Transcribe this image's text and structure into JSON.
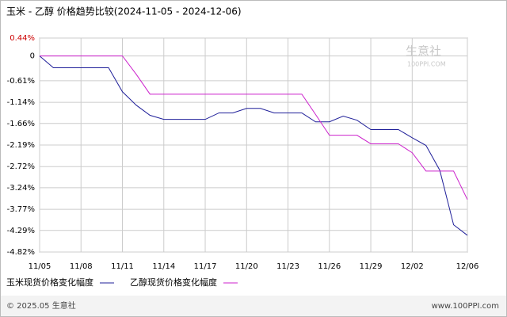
{
  "chart_data": {
    "type": "line",
    "title": "玉米 - 乙醇 价格趋势比较(2024-11-05 - 2024-12-06)",
    "categories": [
      "11/05",
      null,
      null,
      "11/08",
      null,
      null,
      "11/11",
      null,
      null,
      "11/14",
      null,
      null,
      "11/17",
      null,
      null,
      "11/20",
      null,
      null,
      "11/23",
      null,
      null,
      "11/26",
      null,
      null,
      "11/29",
      null,
      null,
      "12/02",
      null,
      null,
      null,
      "12/06"
    ],
    "series": [
      {
        "name": "玉米现货价格变化幅度",
        "color": "#1f1f99",
        "values": [
          0,
          -0.29,
          -0.29,
          -0.29,
          -0.29,
          -0.29,
          -0.88,
          -1.21,
          -1.46,
          -1.56,
          -1.56,
          -1.56,
          -1.56,
          -1.4,
          -1.4,
          -1.29,
          -1.29,
          -1.4,
          -1.4,
          -1.4,
          -1.62,
          -1.62,
          -1.48,
          -1.58,
          -1.81,
          -1.81,
          -1.81,
          -2.01,
          -2.2,
          -2.81,
          -4.15,
          -4.41
        ]
      },
      {
        "name": "乙醇现货价格变化幅度",
        "color": "#cc22cc",
        "values": [
          0,
          0,
          0,
          0,
          0,
          0,
          0,
          -0.45,
          -0.94,
          -0.94,
          -0.94,
          -0.94,
          -0.94,
          -0.94,
          -0.94,
          -0.94,
          -0.94,
          -0.94,
          -0.94,
          -0.94,
          -1.44,
          -1.95,
          -1.95,
          -1.95,
          -2.16,
          -2.16,
          -2.16,
          -2.38,
          -2.83,
          -2.83,
          -2.83,
          -3.53
        ]
      }
    ],
    "ylim": [
      -4.82,
      0.44
    ],
    "yticks": [
      {
        "value": 0.44,
        "label": "0.44%"
      },
      0,
      {
        "value": -0.61,
        "label": "-0.61%"
      },
      {
        "value": -1.14,
        "label": "-1.14%"
      },
      {
        "value": -1.66,
        "label": "-1.66%"
      },
      {
        "value": -2.19,
        "label": "-2.19%"
      },
      {
        "value": -2.72,
        "label": "-2.72%"
      },
      {
        "value": -3.24,
        "label": "-3.24%"
      },
      {
        "value": -3.77,
        "label": "-3.77%"
      },
      {
        "value": -4.29,
        "label": "-4.29%"
      },
      {
        "value": -4.82,
        "label": "-4.82%"
      }
    ],
    "grid": true,
    "watermark": "生意社",
    "watermark_sub": "100PPI.COM",
    "footer_left": "© 2025.05 生意社",
    "footer_right": "www.100PPI.com"
  }
}
